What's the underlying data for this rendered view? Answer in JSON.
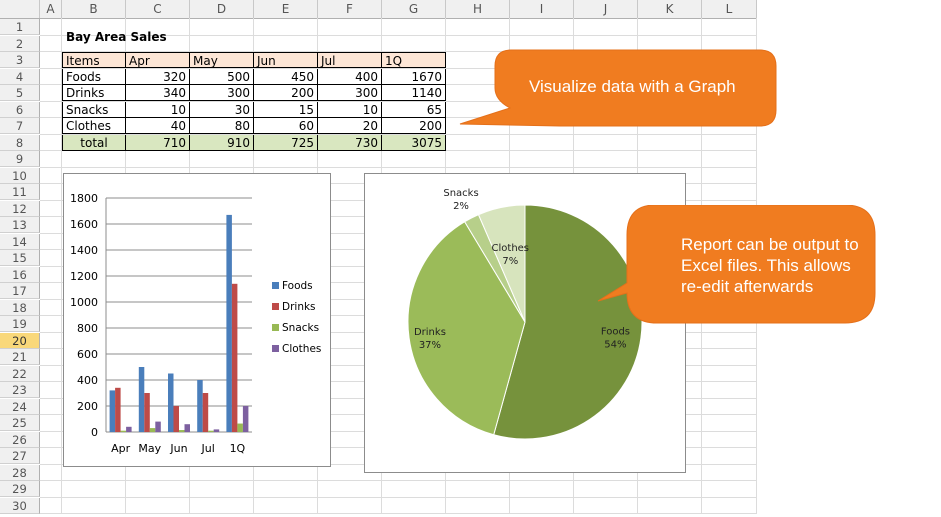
{
  "columns": [
    "A",
    "B",
    "C",
    "D",
    "E",
    "F",
    "G",
    "H",
    "I",
    "J",
    "K",
    "L"
  ],
  "rows": [
    "1",
    "2",
    "3",
    "4",
    "5",
    "6",
    "7",
    "8",
    "9",
    "10",
    "11",
    "12",
    "13",
    "14",
    "15",
    "16",
    "17",
    "18",
    "19",
    "20",
    "21",
    "22",
    "23",
    "24",
    "25",
    "26",
    "27",
    "28",
    "29",
    "30"
  ],
  "selected_row": "20",
  "sheet": {
    "title": "Bay Area Sales",
    "headers": [
      "Items",
      "Apr",
      "May",
      "Jun",
      "Jul",
      "1Q"
    ],
    "rows": [
      {
        "item": "Foods",
        "values": [
          "320",
          "500",
          "450",
          "400",
          "1670"
        ]
      },
      {
        "item": "Drinks",
        "values": [
          "340",
          "300",
          "200",
          "300",
          "1140"
        ]
      },
      {
        "item": "Snacks",
        "values": [
          "10",
          "30",
          "15",
          "10",
          "65"
        ]
      },
      {
        "item": "Clothes",
        "values": [
          "40",
          "80",
          "60",
          "20",
          "200"
        ]
      }
    ],
    "total": {
      "item": "total",
      "values": [
        "710",
        "910",
        "725",
        "730",
        "3075"
      ]
    }
  },
  "callouts": {
    "graph": "Visualize data with a Graph",
    "report": "Report can be output to Excel files. This allows re-edit afterwards"
  },
  "colors": {
    "foods": "#4a7ebb",
    "drinks": "#be4b48",
    "snacks": "#98b954",
    "clothes": "#7d60a0",
    "callout": "#f07c20",
    "pie_foods": "#76923c",
    "pie_drinks": "#9bbb59",
    "pie_snacks": "#b7cf8a",
    "pie_clothes": "#d7e4bd"
  },
  "chart_data": [
    {
      "type": "bar",
      "categories": [
        "Apr",
        "May",
        "Jun",
        "Jul",
        "1Q"
      ],
      "series": [
        {
          "name": "Foods",
          "values": [
            320,
            500,
            450,
            400,
            1670
          ]
        },
        {
          "name": "Drinks",
          "values": [
            340,
            300,
            200,
            300,
            1140
          ]
        },
        {
          "name": "Snacks",
          "values": [
            10,
            30,
            15,
            10,
            65
          ]
        },
        {
          "name": "Clothes",
          "values": [
            40,
            80,
            60,
            20,
            200
          ]
        }
      ],
      "yticks": [
        "0",
        "200",
        "400",
        "600",
        "800",
        "1000",
        "1200",
        "1400",
        "1600",
        "1800"
      ],
      "ylim": [
        0,
        1800
      ],
      "legend": "right",
      "grid": true
    },
    {
      "type": "pie",
      "labels": [
        "Foods",
        "Drinks",
        "Snacks",
        "Clothes"
      ],
      "values": [
        1670,
        1140,
        65,
        200
      ],
      "percent_labels": [
        "54%",
        "37%",
        "2%",
        "7%"
      ],
      "legend": "none"
    }
  ]
}
